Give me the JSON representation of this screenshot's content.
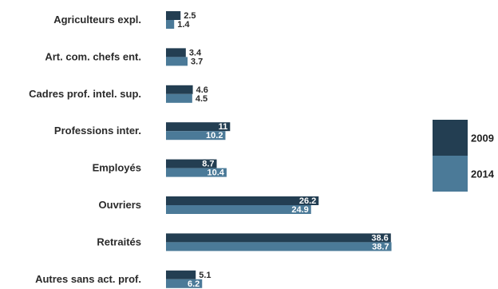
{
  "chart_data": {
    "type": "bar",
    "orientation": "horizontal",
    "title": "",
    "xlabel": "",
    "ylabel": "",
    "grid": false,
    "legend_position": "right",
    "categories": [
      "Agriculteurs expl.",
      "Art. com. chefs ent.",
      "Cadres prof. intel. sup.",
      "Professions inter.",
      "Employés",
      "Ouvriers",
      "Retraités",
      "Autres sans act. prof."
    ],
    "series": [
      {
        "name": "2009",
        "color": "#233e52",
        "values": [
          2.5,
          3.4,
          4.6,
          11,
          8.7,
          26.2,
          38.6,
          5.1
        ],
        "labels": [
          "2.5",
          "3.4",
          "4.6",
          "11",
          "8.7",
          "26.2",
          "38.6",
          "5.1"
        ]
      },
      {
        "name": "2014",
        "color": "#4b7a98",
        "values": [
          1.4,
          3.7,
          4.5,
          10.2,
          10.4,
          24.9,
          38.7,
          6.2
        ],
        "labels": [
          "1.4",
          "3.7",
          "4.5",
          "10.2",
          "10.4",
          "24.9",
          "38.7",
          "6.2"
        ]
      }
    ]
  }
}
